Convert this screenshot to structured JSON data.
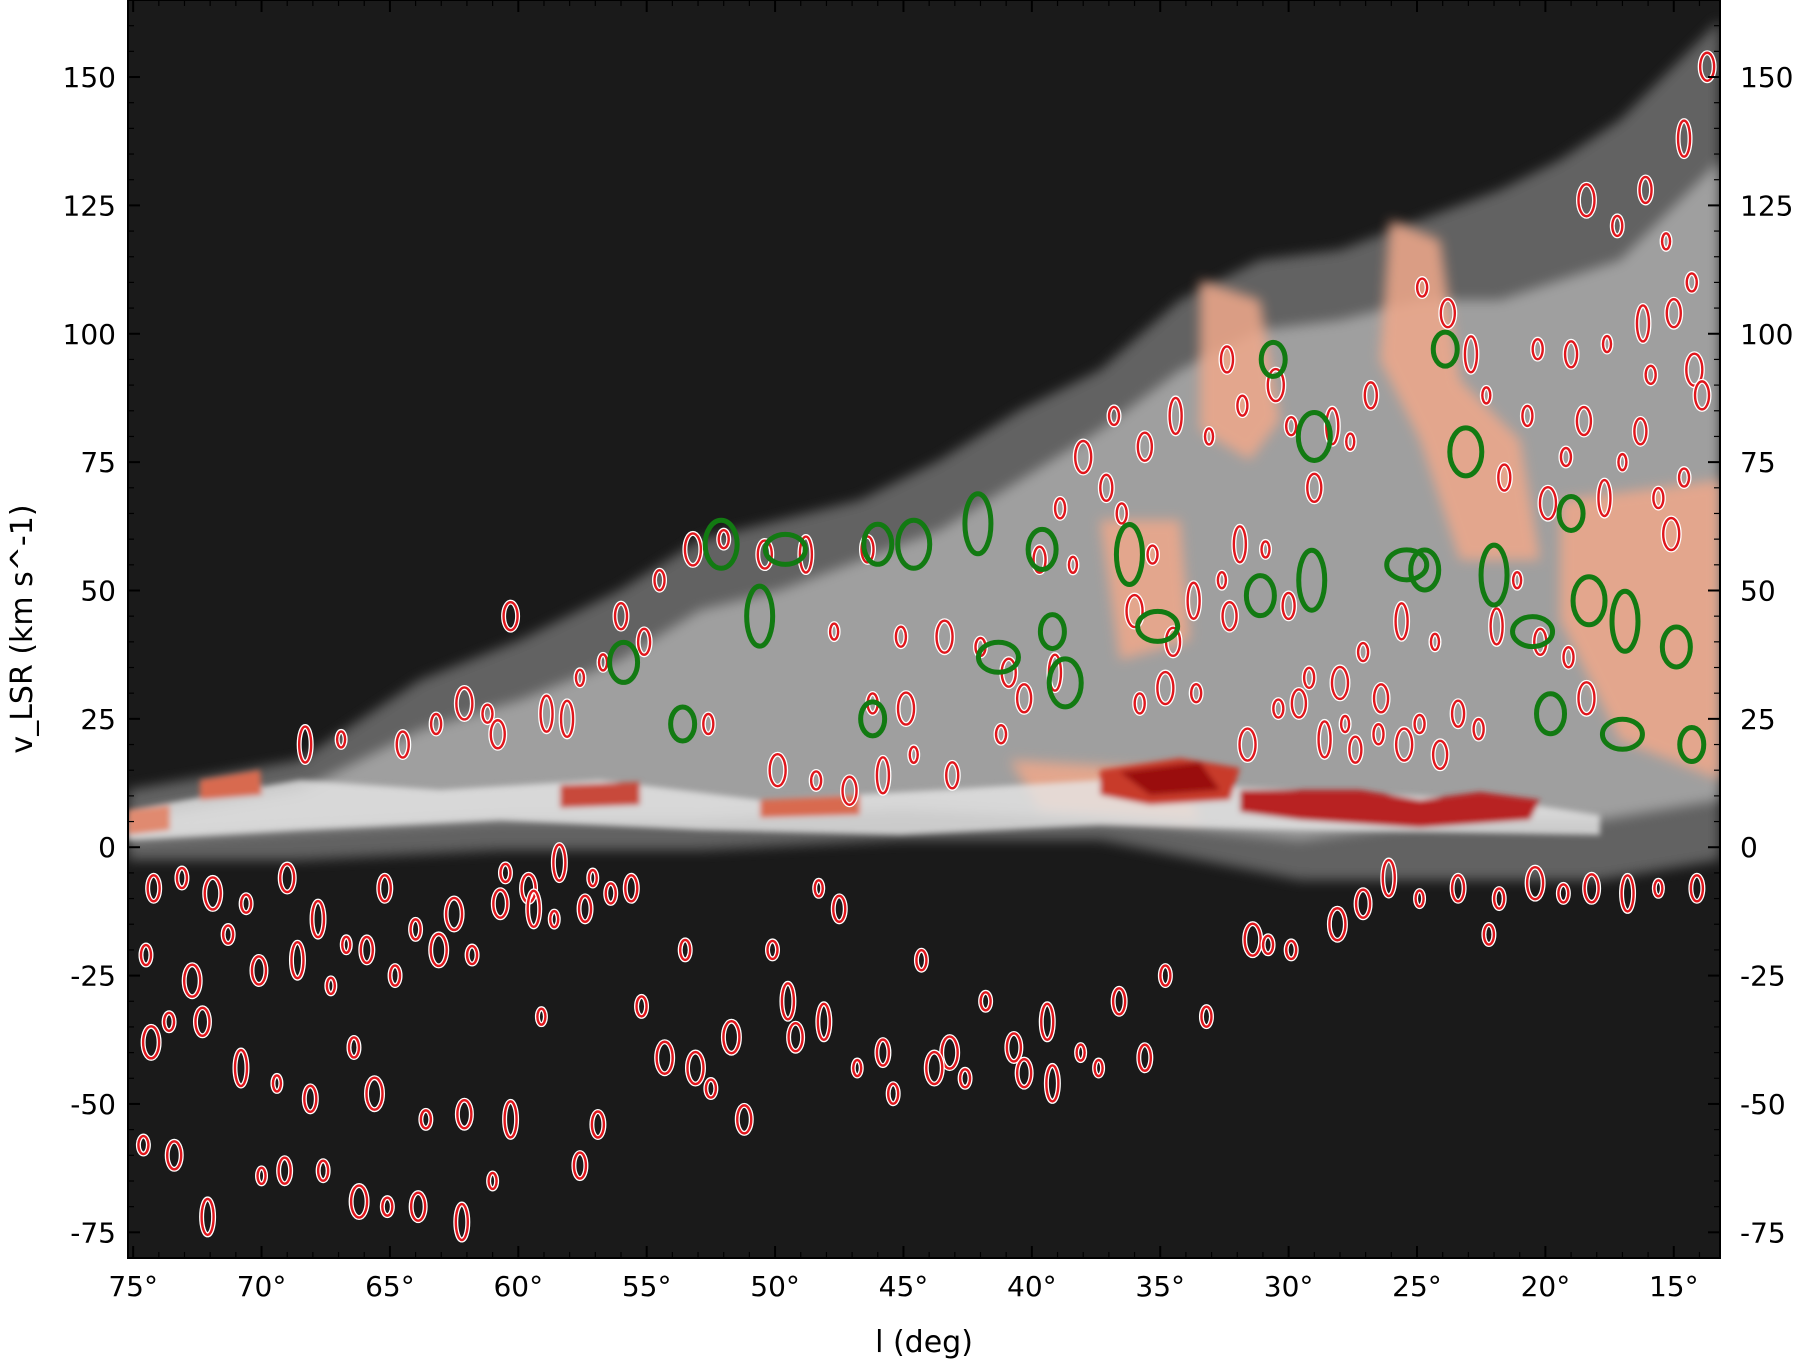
{
  "chart_data": {
    "type": "scatter",
    "title": "",
    "xlabel": "l (deg)",
    "ylabel": "v_LSR (km s^-1)",
    "xlim": [
      75.2,
      13.2
    ],
    "ylim": [
      -80,
      165
    ],
    "x_ticks": [
      75,
      70,
      65,
      60,
      55,
      50,
      45,
      40,
      35,
      30,
      25,
      20,
      15
    ],
    "x_tick_labels": [
      "75°",
      "70°",
      "65°",
      "60°",
      "55°",
      "50°",
      "45°",
      "40°",
      "35°",
      "30°",
      "25°",
      "20°",
      "15°"
    ],
    "y_ticks": [
      150,
      125,
      100,
      75,
      50,
      25,
      0,
      -25,
      -50,
      -75
    ],
    "y_tick_labels": [
      "150",
      "125",
      "100",
      "75",
      "50",
      "25",
      "0",
      "-25",
      "-50",
      "-75"
    ],
    "grid": false,
    "colors": {
      "background": "#1a1a1a",
      "red_ellipse": "#e0161c",
      "green_ellipse": "#127a12",
      "emission_gray": "#c8c8c8",
      "emission_red": "#f0a88a",
      "emission_dark_red": "#9a0b0b"
    },
    "series": [
      {
        "marker": "red-ellipse",
        "points": [
          [
            74.2,
            -8
          ],
          [
            73.1,
            -6
          ],
          [
            71.9,
            -9
          ],
          [
            70.6,
            -11
          ],
          [
            69.0,
            -6
          ],
          [
            67.8,
            -14
          ],
          [
            66.7,
            -19
          ],
          [
            65.2,
            -8
          ],
          [
            64.0,
            -16
          ],
          [
            62.5,
            -13
          ],
          [
            60.5,
            -5
          ],
          [
            59.6,
            -8
          ],
          [
            58.4,
            -3
          ],
          [
            57.1,
            -6
          ],
          [
            55.6,
            -8
          ],
          [
            74.5,
            -21
          ],
          [
            72.7,
            -26
          ],
          [
            71.3,
            -17
          ],
          [
            70.1,
            -24
          ],
          [
            68.6,
            -22
          ],
          [
            67.3,
            -27
          ],
          [
            65.9,
            -20
          ],
          [
            64.8,
            -25
          ],
          [
            63.1,
            -20
          ],
          [
            61.8,
            -21
          ],
          [
            60.7,
            -11
          ],
          [
            59.4,
            -12
          ],
          [
            58.6,
            -14
          ],
          [
            57.4,
            -12
          ],
          [
            56.4,
            -9
          ],
          [
            74.3,
            -38
          ],
          [
            73.6,
            -34
          ],
          [
            72.3,
            -34
          ],
          [
            70.8,
            -43
          ],
          [
            69.4,
            -46
          ],
          [
            68.1,
            -49
          ],
          [
            66.4,
            -39
          ],
          [
            65.6,
            -48
          ],
          [
            63.6,
            -53
          ],
          [
            62.1,
            -52
          ],
          [
            60.3,
            -53
          ],
          [
            59.1,
            -33
          ],
          [
            56.9,
            -54
          ],
          [
            55.2,
            -31
          ],
          [
            54.3,
            -41
          ],
          [
            74.6,
            -58
          ],
          [
            73.4,
            -60
          ],
          [
            72.1,
            -72
          ],
          [
            70.0,
            -64
          ],
          [
            69.1,
            -63
          ],
          [
            67.6,
            -63
          ],
          [
            66.2,
            -69
          ],
          [
            65.1,
            -70
          ],
          [
            63.9,
            -70
          ],
          [
            62.2,
            -73
          ],
          [
            61.0,
            -65
          ],
          [
            57.6,
            -62
          ],
          [
            53.5,
            -20
          ],
          [
            51.7,
            -37
          ],
          [
            50.1,
            -20
          ],
          [
            49.2,
            -37
          ],
          [
            48.1,
            -34
          ],
          [
            46.8,
            -43
          ],
          [
            45.8,
            -40
          ],
          [
            44.3,
            -22
          ],
          [
            43.2,
            -40
          ],
          [
            41.8,
            -30
          ],
          [
            40.7,
            -39
          ],
          [
            39.4,
            -34
          ],
          [
            38.1,
            -40
          ],
          [
            36.6,
            -30
          ],
          [
            34.8,
            -25
          ],
          [
            53.1,
            -43
          ],
          [
            52.5,
            -47
          ],
          [
            51.2,
            -53
          ],
          [
            49.5,
            -30
          ],
          [
            48.3,
            -8
          ],
          [
            47.5,
            -12
          ],
          [
            45.4,
            -48
          ],
          [
            43.8,
            -43
          ],
          [
            42.6,
            -45
          ],
          [
            40.3,
            -44
          ],
          [
            39.2,
            -46
          ],
          [
            37.4,
            -43
          ],
          [
            35.6,
            -41
          ],
          [
            33.2,
            -33
          ],
          [
            31.4,
            -18
          ],
          [
            29.9,
            -20
          ],
          [
            27.1,
            -11
          ],
          [
            26.1,
            -6
          ],
          [
            24.9,
            -10
          ],
          [
            23.4,
            -8
          ],
          [
            21.8,
            -10
          ],
          [
            20.4,
            -7
          ],
          [
            19.3,
            -9
          ],
          [
            18.2,
            -8
          ],
          [
            16.8,
            -9
          ],
          [
            15.6,
            -8
          ],
          [
            14.1,
            -8
          ],
          [
            22.2,
            -17
          ],
          [
            28.1,
            -15
          ],
          [
            30.8,
            -19
          ],
          [
            60.3,
            45
          ],
          [
            58.1,
            25
          ],
          [
            56.7,
            36
          ],
          [
            55.1,
            40
          ],
          [
            54.5,
            52
          ],
          [
            53.2,
            58
          ],
          [
            52.0,
            60
          ],
          [
            50.4,
            57
          ],
          [
            48.8,
            57
          ],
          [
            47.7,
            42
          ],
          [
            46.4,
            58
          ],
          [
            45.1,
            41
          ],
          [
            43.4,
            41
          ],
          [
            42.0,
            39
          ],
          [
            40.9,
            34
          ],
          [
            68.3,
            20
          ],
          [
            66.9,
            21
          ],
          [
            64.5,
            20
          ],
          [
            63.2,
            24
          ],
          [
            62.1,
            28
          ],
          [
            61.2,
            26
          ],
          [
            60.8,
            22
          ],
          [
            58.9,
            26
          ],
          [
            57.6,
            33
          ],
          [
            56.0,
            45
          ],
          [
            52.6,
            24
          ],
          [
            49.9,
            15
          ],
          [
            48.4,
            13
          ],
          [
            47.1,
            11
          ],
          [
            45.8,
            14
          ],
          [
            44.6,
            18
          ],
          [
            43.1,
            14
          ],
          [
            46.2,
            28
          ],
          [
            44.9,
            27
          ],
          [
            41.2,
            22
          ],
          [
            40.3,
            29
          ],
          [
            39.1,
            34
          ],
          [
            38.4,
            55
          ],
          [
            37.1,
            70
          ],
          [
            36.5,
            65
          ],
          [
            36.0,
            46
          ],
          [
            35.3,
            57
          ],
          [
            34.5,
            40
          ],
          [
            33.7,
            48
          ],
          [
            32.6,
            52
          ],
          [
            39.7,
            56
          ],
          [
            38.9,
            66
          ],
          [
            38.0,
            76
          ],
          [
            36.8,
            84
          ],
          [
            35.6,
            78
          ],
          [
            34.4,
            84
          ],
          [
            33.1,
            80
          ],
          [
            32.4,
            95
          ],
          [
            31.8,
            86
          ],
          [
            30.5,
            90
          ],
          [
            29.9,
            82
          ],
          [
            29.0,
            70
          ],
          [
            28.3,
            82
          ],
          [
            27.6,
            79
          ],
          [
            26.8,
            88
          ],
          [
            35.8,
            28
          ],
          [
            34.8,
            31
          ],
          [
            33.6,
            30
          ],
          [
            32.3,
            45
          ],
          [
            31.9,
            59
          ],
          [
            30.9,
            58
          ],
          [
            30.0,
            47
          ],
          [
            29.2,
            33
          ],
          [
            28.0,
            32
          ],
          [
            27.1,
            38
          ],
          [
            26.4,
            29
          ],
          [
            25.6,
            44
          ],
          [
            24.3,
            40
          ],
          [
            23.4,
            26
          ],
          [
            22.6,
            23
          ],
          [
            31.6,
            20
          ],
          [
            30.4,
            27
          ],
          [
            29.6,
            28
          ],
          [
            28.6,
            21
          ],
          [
            27.8,
            24
          ],
          [
            27.4,
            19
          ],
          [
            26.5,
            22
          ],
          [
            25.5,
            20
          ],
          [
            24.9,
            24
          ],
          [
            24.1,
            18
          ],
          [
            21.9,
            43
          ],
          [
            21.1,
            52
          ],
          [
            20.2,
            40
          ],
          [
            19.1,
            37
          ],
          [
            18.4,
            29
          ],
          [
            24.8,
            109
          ],
          [
            23.8,
            104
          ],
          [
            22.9,
            96
          ],
          [
            22.3,
            88
          ],
          [
            21.6,
            72
          ],
          [
            20.7,
            84
          ],
          [
            19.9,
            67
          ],
          [
            19.2,
            76
          ],
          [
            18.5,
            83
          ],
          [
            17.7,
            68
          ],
          [
            17.0,
            75
          ],
          [
            16.3,
            81
          ],
          [
            15.6,
            68
          ],
          [
            15.1,
            61
          ],
          [
            14.6,
            72
          ],
          [
            13.7,
            152
          ],
          [
            14.6,
            138
          ],
          [
            15.3,
            118
          ],
          [
            16.1,
            128
          ],
          [
            17.2,
            121
          ],
          [
            18.4,
            126
          ],
          [
            14.3,
            110
          ],
          [
            15.0,
            104
          ],
          [
            16.2,
            102
          ],
          [
            17.6,
            98
          ],
          [
            19.0,
            96
          ],
          [
            20.3,
            97
          ],
          [
            14.2,
            93
          ],
          [
            15.9,
            92
          ],
          [
            13.9,
            88
          ]
        ]
      },
      {
        "marker": "green-ellipse",
        "points": [
          [
            55.9,
            36
          ],
          [
            53.6,
            24
          ],
          [
            52.1,
            59
          ],
          [
            50.6,
            45
          ],
          [
            49.6,
            58
          ],
          [
            46.0,
            59
          ],
          [
            46.2,
            25
          ],
          [
            44.6,
            59
          ],
          [
            42.1,
            63
          ],
          [
            41.3,
            37
          ],
          [
            39.6,
            58
          ],
          [
            39.2,
            42
          ],
          [
            38.7,
            32
          ],
          [
            36.2,
            57
          ],
          [
            35.1,
            43
          ],
          [
            31.1,
            49
          ],
          [
            30.6,
            95
          ],
          [
            29.0,
            80
          ],
          [
            29.1,
            52
          ],
          [
            25.4,
            55
          ],
          [
            24.7,
            54
          ],
          [
            23.9,
            97
          ],
          [
            23.1,
            77
          ],
          [
            22.0,
            53
          ],
          [
            20.5,
            42
          ],
          [
            19.8,
            26
          ],
          [
            19.0,
            65
          ],
          [
            18.3,
            48
          ],
          [
            16.9,
            44
          ],
          [
            17.0,
            22
          ],
          [
            14.9,
            39
          ],
          [
            14.3,
            20
          ]
        ]
      }
    ]
  }
}
